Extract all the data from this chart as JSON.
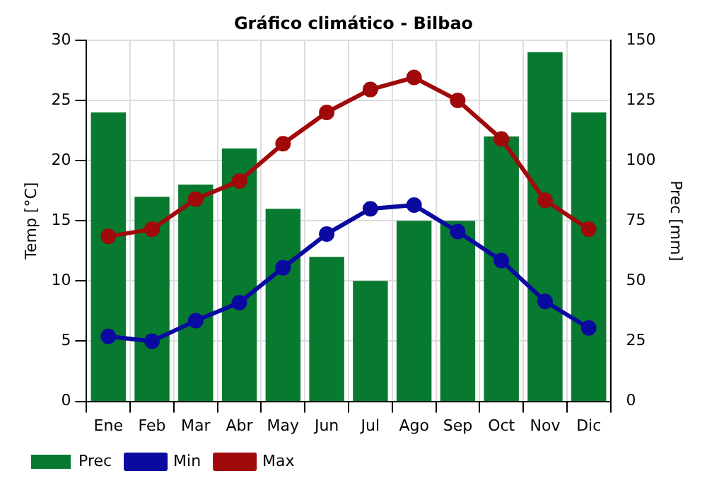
{
  "chart_data": {
    "type": "bar",
    "title": "Gráfico climático - Bilbao",
    "ylabel": "Temp [°C]",
    "y2label": "Prec [mm]",
    "categories": [
      "Ene",
      "Feb",
      "Mar",
      "Abr",
      "May",
      "Jun",
      "Jul",
      "Ago",
      "Sep",
      "Oct",
      "Nov",
      "Dic"
    ],
    "series": [
      {
        "name": "Prec",
        "axis": "y2",
        "color": "#077a30",
        "values": [
          120,
          85,
          90,
          105,
          80,
          60,
          50,
          75,
          75,
          110,
          145,
          120
        ]
      },
      {
        "name": "Min",
        "type": "line",
        "color": "#0a0aa0",
        "values": [
          5.4,
          5.0,
          6.7,
          8.2,
          11.1,
          13.9,
          16.0,
          16.3,
          14.1,
          11.7,
          8.3,
          6.1
        ]
      },
      {
        "name": "Max",
        "type": "line",
        "color": "#a00a0a",
        "values": [
          13.7,
          14.3,
          16.8,
          18.3,
          21.4,
          24.0,
          25.9,
          26.9,
          25.0,
          21.8,
          16.7,
          14.3
        ]
      }
    ],
    "ylim": [
      0,
      30
    ],
    "yticks": [
      0,
      5,
      10,
      15,
      20,
      25,
      30
    ],
    "y2lim": [
      0,
      150
    ],
    "y2ticks": [
      0,
      25,
      50,
      75,
      100,
      125,
      150
    ],
    "grid": true,
    "legend": "bottom left",
    "marker": "circle",
    "line_style": "solid"
  }
}
